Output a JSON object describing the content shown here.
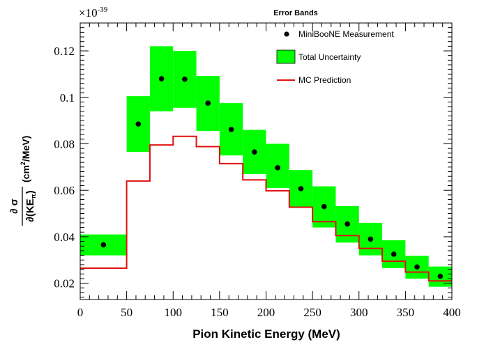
{
  "chart_data": {
    "type": "bar",
    "title": "",
    "xlabel": "Pion Kinetic Energy (MeV)",
    "ylabel": "∂σ / ∂(KE_π) (cm²/MeV)",
    "y_scale_label": "×10",
    "y_scale_exponent": "-39",
    "xlim": [
      0,
      400
    ],
    "ylim": [
      0.013,
      0.132
    ],
    "x_ticks": [
      "0",
      "50",
      "100",
      "150",
      "200",
      "250",
      "300",
      "350",
      "400"
    ],
    "x_tick_values": [
      0,
      50,
      100,
      150,
      200,
      250,
      300,
      350,
      400
    ],
    "y_ticks": [
      "0.02",
      "0.04",
      "0.06",
      "0.08",
      "0.1",
      "0.12"
    ],
    "y_tick_values": [
      0.02,
      0.04,
      0.06,
      0.08,
      0.1,
      0.12
    ],
    "legend": {
      "title": "Error Bands",
      "position": "top-right",
      "entries": [
        "MiniBooNE Measurement",
        "Total Uncertainty",
        "MC Prediction"
      ]
    },
    "bins": [
      {
        "lo": 0,
        "hi": 50,
        "x": 25,
        "value": 0.0365,
        "band_lo": 0.032,
        "band_hi": 0.041,
        "mc": 0.0265
      },
      {
        "lo": 50,
        "hi": 75,
        "x": 62.5,
        "value": 0.0885,
        "band_lo": 0.0765,
        "band_hi": 0.1005,
        "mc": 0.064
      },
      {
        "lo": 75,
        "hi": 100,
        "x": 87.5,
        "value": 0.108,
        "band_lo": 0.094,
        "band_hi": 0.122,
        "mc": 0.0795
      },
      {
        "lo": 100,
        "hi": 125,
        "x": 112.5,
        "value": 0.1078,
        "band_lo": 0.0955,
        "band_hi": 0.12,
        "mc": 0.0832
      },
      {
        "lo": 125,
        "hi": 150,
        "x": 137.5,
        "value": 0.0975,
        "band_lo": 0.0855,
        "band_hi": 0.1092,
        "mc": 0.0788
      },
      {
        "lo": 150,
        "hi": 175,
        "x": 162.5,
        "value": 0.0862,
        "band_lo": 0.075,
        "band_hi": 0.0975,
        "mc": 0.0715
      },
      {
        "lo": 175,
        "hi": 200,
        "x": 187.5,
        "value": 0.0765,
        "band_lo": 0.067,
        "band_hi": 0.086,
        "mc": 0.0645
      },
      {
        "lo": 200,
        "hi": 225,
        "x": 212.5,
        "value": 0.0697,
        "band_lo": 0.061,
        "band_hi": 0.08,
        "mc": 0.0598
      },
      {
        "lo": 225,
        "hi": 250,
        "x": 237.5,
        "value": 0.0607,
        "band_lo": 0.0525,
        "band_hi": 0.0687,
        "mc": 0.0527
      },
      {
        "lo": 250,
        "hi": 275,
        "x": 262.5,
        "value": 0.053,
        "band_lo": 0.044,
        "band_hi": 0.0617,
        "mc": 0.0465
      },
      {
        "lo": 275,
        "hi": 300,
        "x": 287.5,
        "value": 0.0455,
        "band_lo": 0.0375,
        "band_hi": 0.0532,
        "mc": 0.0405
      },
      {
        "lo": 300,
        "hi": 325,
        "x": 312.5,
        "value": 0.039,
        "band_lo": 0.032,
        "band_hi": 0.046,
        "mc": 0.035
      },
      {
        "lo": 325,
        "hi": 350,
        "x": 337.5,
        "value": 0.0325,
        "band_lo": 0.0265,
        "band_hi": 0.0385,
        "mc": 0.0295
      },
      {
        "lo": 350,
        "hi": 375,
        "x": 362.5,
        "value": 0.027,
        "band_lo": 0.022,
        "band_hi": 0.0318,
        "mc": 0.0248
      },
      {
        "lo": 375,
        "hi": 400,
        "x": 387.5,
        "value": 0.023,
        "band_lo": 0.0185,
        "band_hi": 0.0272,
        "mc": 0.021
      }
    ],
    "colors": {
      "band": "#00ff00",
      "mc_line": "#e01010",
      "points": "#000000"
    }
  }
}
